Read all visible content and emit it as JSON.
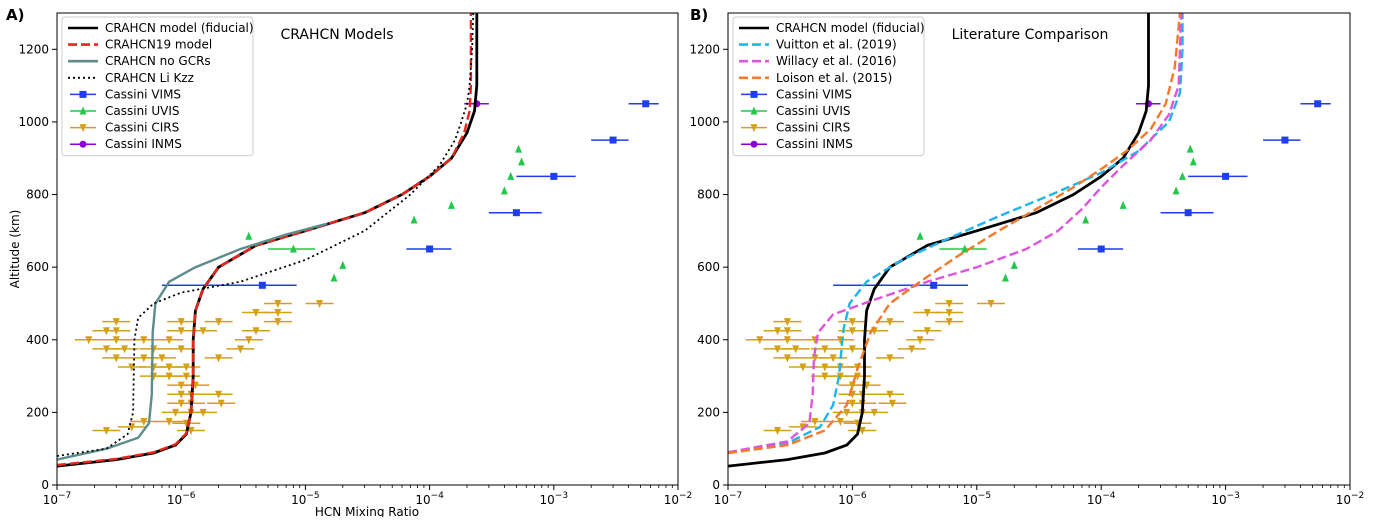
{
  "panels": [
    {
      "letter": "A)",
      "title": "CRAHCN Models",
      "xlabel": "HCN Mixing Ratio",
      "ylabel": "Altitude (km)",
      "legend": [
        {
          "label": "CRAHCN model (fiducial)",
          "color": "#000000",
          "style": "solid"
        },
        {
          "label": "CRAHCN19 model",
          "color": "#e8261c",
          "style": "dashed"
        },
        {
          "label": "CRAHCN no GCRs",
          "color": "#5e8c8c",
          "style": "solid"
        },
        {
          "label": "CRAHCN Li Kzz",
          "color": "#000000",
          "style": "dotted"
        },
        {
          "label": "Cassini VIMS",
          "color": "#1f3ef0",
          "marker": "square"
        },
        {
          "label": "Cassini UVIS",
          "color": "#22c84a",
          "marker": "triangle-up"
        },
        {
          "label": "Cassini CIRS",
          "color": "#d4a017",
          "marker": "triangle-down"
        },
        {
          "label": "Cassini INMS",
          "color": "#8a00d4",
          "marker": "circle"
        }
      ]
    },
    {
      "letter": "B)",
      "title": "Literature Comparison",
      "xlabel": "",
      "ylabel": "",
      "legend": [
        {
          "label": "CRAHCN model (fiducial)",
          "color": "#000000",
          "style": "solid"
        },
        {
          "label": "Vuitton et al. (2019)",
          "color": "#1fb4f0",
          "style": "dashed"
        },
        {
          "label": "Willacy et al. (2016)",
          "color": "#dd55dd",
          "style": "dashed"
        },
        {
          "label": "Loison et al. (2015)",
          "color": "#f5792a",
          "style": "dashed"
        },
        {
          "label": "Cassini VIMS",
          "color": "#1f3ef0",
          "marker": "square"
        },
        {
          "label": "Cassini UVIS",
          "color": "#22c84a",
          "marker": "triangle-up"
        },
        {
          "label": "Cassini CIRS",
          "color": "#d4a017",
          "marker": "triangle-down"
        },
        {
          "label": "Cassini INMS",
          "color": "#8a00d4",
          "marker": "circle"
        }
      ]
    }
  ],
  "chart_data": [
    {
      "type": "line",
      "title": "CRAHCN Models",
      "xlabel": "HCN Mixing Ratio",
      "ylabel": "Altitude (km)",
      "xscale": "log",
      "xlim": [
        1e-07,
        0.01
      ],
      "ylim": [
        0,
        1300
      ],
      "xticks": [
        "10^-7",
        "10^-6",
        "10^-5",
        "10^-4",
        "10^-3",
        "10^-2"
      ],
      "yticks": [
        0,
        200,
        400,
        600,
        800,
        1000,
        1200
      ],
      "legend_position": "top-left",
      "series": [
        {
          "name": "CRAHCN model (fiducial)",
          "color": "#000000",
          "style": "solid",
          "x": [
            1e-07,
            3e-07,
            6e-07,
            9e-07,
            1.1e-06,
            1.2e-06,
            1.25e-06,
            1.25e-06,
            1.3e-06,
            1.5e-06,
            2e-06,
            4e-06,
            1e-05,
            3e-05,
            6e-05,
            0.0001,
            0.00015,
            0.0002,
            0.00023,
            0.00024,
            0.00024
          ],
          "y": [
            52,
            70,
            88,
            110,
            140,
            200,
            300,
            400,
            480,
            540,
            600,
            660,
            700,
            750,
            800,
            850,
            900,
            970,
            1030,
            1100,
            1300
          ]
        },
        {
          "name": "CRAHCN19 model",
          "color": "#e8261c",
          "style": "dashed",
          "x": [
            1e-07,
            3e-07,
            6e-07,
            9e-07,
            1.1e-06,
            1.2e-06,
            1.25e-06,
            1.25e-06,
            1.3e-06,
            1.5e-06,
            2e-06,
            4e-06,
            1e-05,
            3e-05,
            6e-05,
            0.0001,
            0.00015,
            0.00019,
            0.00021,
            0.000215,
            0.000215
          ],
          "y": [
            55,
            72,
            90,
            112,
            142,
            200,
            300,
            400,
            480,
            540,
            600,
            660,
            700,
            750,
            800,
            850,
            900,
            970,
            1030,
            1100,
            1300
          ]
        },
        {
          "name": "CRAHCN no GCRs",
          "color": "#5e8c8c",
          "style": "solid",
          "x": [
            1e-07,
            2.5e-07,
            4.5e-07,
            5.5e-07,
            5.8e-07,
            5.9e-07,
            6.2e-07,
            8e-07,
            1.3e-06,
            3e-06,
            7e-06,
            1.5e-05
          ],
          "y": [
            70,
            100,
            130,
            170,
            250,
            420,
            500,
            560,
            600,
            650,
            690,
            720
          ]
        },
        {
          "name": "CRAHCN Li Kzz",
          "color": "#000000",
          "style": "dotted",
          "x": [
            1e-07,
            2.5e-07,
            3.7e-07,
            4.1e-07,
            4.2e-07,
            4.5e-07,
            6e-07,
            1e-06,
            3e-06,
            1e-05,
            3e-05,
            7e-05,
            0.00012,
            0.00016,
            0.00018,
            0.0002,
            0.00021,
            0.00022,
            0.000225
          ],
          "y": [
            80,
            100,
            140,
            200,
            400,
            460,
            500,
            530,
            560,
            620,
            700,
            800,
            880,
            950,
            1000,
            1050,
            1100,
            1200,
            1300
          ]
        }
      ],
      "observations": {
        "vims": [
          {
            "x": 4.5e-06,
            "xmin": 7e-07,
            "xmax": 8.5e-06,
            "y": 550
          },
          {
            "x": 0.0001,
            "xmin": 6.5e-05,
            "xmax": 0.00015,
            "y": 650
          },
          {
            "x": 0.0005,
            "xmin": 0.0003,
            "xmax": 0.0008,
            "y": 750
          },
          {
            "x": 0.001,
            "xmin": 0.0005,
            "xmax": 0.0015,
            "y": 850
          },
          {
            "x": 0.003,
            "xmin": 0.002,
            "xmax": 0.004,
            "y": 950
          },
          {
            "x": 0.0055,
            "xmin": 0.004,
            "xmax": 0.007,
            "y": 1050
          }
        ],
        "uvis": [
          {
            "x": 3.5e-06,
            "y": 685
          },
          {
            "x": 8e-06,
            "xmin": 5e-06,
            "xmax": 1.2e-05,
            "y": 650
          },
          {
            "x": 1.7e-05,
            "y": 570
          },
          {
            "x": 2e-05,
            "y": 605
          },
          {
            "x": 7.5e-05,
            "y": 730
          },
          {
            "x": 0.00015,
            "y": 770
          },
          {
            "x": 0.0004,
            "y": 810
          },
          {
            "x": 0.00045,
            "y": 850
          },
          {
            "x": 0.00055,
            "y": 890
          },
          {
            "x": 0.00052,
            "y": 925
          }
        ],
        "cirs": [
          {
            "x": 2.5e-07,
            "y": 150
          },
          {
            "x": 4e-07,
            "y": 160
          },
          {
            "x": 5e-07,
            "y": 175
          },
          {
            "x": 8e-07,
            "y": 175
          },
          {
            "x": 1.1e-06,
            "y": 170
          },
          {
            "x": 1.2e-06,
            "y": 150
          },
          {
            "x": 9e-07,
            "y": 200
          },
          {
            "x": 1.2e-06,
            "y": 200
          },
          {
            "x": 1.5e-06,
            "y": 200
          },
          {
            "x": 1e-06,
            "y": 225
          },
          {
            "x": 1.2e-06,
            "y": 225
          },
          {
            "x": 2.1e-06,
            "y": 225
          },
          {
            "x": 1e-06,
            "y": 250
          },
          {
            "x": 1.2e-06,
            "y": 250
          },
          {
            "x": 2e-06,
            "y": 250
          },
          {
            "x": 1e-06,
            "y": 275
          },
          {
            "x": 1.3e-06,
            "y": 275
          },
          {
            "x": 6e-07,
            "y": 300
          },
          {
            "x": 8e-07,
            "y": 300
          },
          {
            "x": 1.1e-06,
            "y": 300
          },
          {
            "x": 4e-07,
            "y": 325
          },
          {
            "x": 6e-07,
            "y": 325
          },
          {
            "x": 8e-07,
            "y": 325
          },
          {
            "x": 1.1e-06,
            "y": 325
          },
          {
            "x": 3e-07,
            "y": 350
          },
          {
            "x": 5e-07,
            "y": 350
          },
          {
            "x": 7e-07,
            "y": 350
          },
          {
            "x": 2e-06,
            "y": 350
          },
          {
            "x": 2.5e-07,
            "y": 375
          },
          {
            "x": 3.5e-07,
            "y": 375
          },
          {
            "x": 6e-07,
            "y": 375
          },
          {
            "x": 1e-06,
            "y": 375
          },
          {
            "x": 3e-06,
            "y": 375
          },
          {
            "x": 1.8e-07,
            "y": 400
          },
          {
            "x": 3e-07,
            "y": 400
          },
          {
            "x": 5e-07,
            "y": 400
          },
          {
            "x": 8e-07,
            "y": 400
          },
          {
            "x": 3.5e-06,
            "y": 400
          },
          {
            "x": 2.5e-07,
            "y": 425
          },
          {
            "x": 3e-07,
            "y": 425
          },
          {
            "x": 1e-06,
            "y": 425
          },
          {
            "x": 1.5e-06,
            "y": 425
          },
          {
            "x": 4e-06,
            "y": 425
          },
          {
            "x": 3e-07,
            "y": 450
          },
          {
            "x": 1e-06,
            "y": 450
          },
          {
            "x": 2e-06,
            "y": 450
          },
          {
            "x": 6e-06,
            "y": 450
          },
          {
            "x": 6e-06,
            "y": 475
          },
          {
            "x": 4e-06,
            "y": 475
          },
          {
            "x": 6e-06,
            "y": 500
          },
          {
            "x": 1.3e-05,
            "y": 500
          }
        ],
        "inms": [
          {
            "x": 0.00024,
            "xmin": 0.00019,
            "xmax": 0.0003,
            "y": 1050
          }
        ]
      }
    },
    {
      "type": "line",
      "title": "Literature Comparison",
      "xscale": "log",
      "xlim": [
        1e-07,
        0.01
      ],
      "ylim": [
        0,
        1300
      ],
      "xticks": [
        "10^-7",
        "10^-6",
        "10^-5",
        "10^-4",
        "10^-3",
        "10^-2"
      ],
      "yticks": [
        0,
        200,
        400,
        600,
        800,
        1000,
        1200
      ],
      "legend_position": "top-left",
      "series": [
        {
          "name": "CRAHCN model (fiducial)",
          "color": "#000000",
          "style": "solid",
          "x": [
            1e-07,
            3e-07,
            6e-07,
            9e-07,
            1.1e-06,
            1.2e-06,
            1.25e-06,
            1.25e-06,
            1.3e-06,
            1.5e-06,
            2e-06,
            4e-06,
            1e-05,
            3e-05,
            6e-05,
            0.0001,
            0.00015,
            0.0002,
            0.00023,
            0.00024,
            0.00024
          ],
          "y": [
            52,
            70,
            88,
            110,
            140,
            200,
            300,
            400,
            480,
            540,
            600,
            660,
            700,
            750,
            800,
            850,
            900,
            970,
            1030,
            1100,
            1300
          ]
        },
        {
          "name": "Vuitton et al. (2019)",
          "color": "#1fb4f0",
          "style": "dashed",
          "x": [
            1e-07,
            3e-07,
            5.5e-07,
            7e-07,
            7.8e-07,
            8.2e-07,
            8.5e-07,
            9.5e-07,
            1.3e-06,
            2.5e-06,
            6e-06,
            1.5e-05,
            4e-05,
            0.0001,
            0.0002,
            0.00035,
            0.00043,
            0.00045,
            0.00045
          ],
          "y": [
            90,
            115,
            160,
            220,
            300,
            380,
            430,
            500,
            560,
            620,
            680,
            740,
            800,
            860,
            920,
            1000,
            1080,
            1200,
            1300
          ]
        },
        {
          "name": "Willacy et al. (2016)",
          "color": "#dd55dd",
          "style": "dashed",
          "x": [
            1e-07,
            3e-07,
            4.5e-07,
            4.8e-07,
            4.9e-07,
            5.3e-07,
            7e-07,
            1.5e-06,
            4e-06,
            1e-05,
            2.5e-05,
            4.5e-05,
            7e-05,
            0.0001,
            0.00015,
            0.00025,
            0.00035,
            0.00042,
            0.00044
          ],
          "y": [
            90,
            120,
            170,
            250,
            350,
            420,
            470,
            510,
            560,
            600,
            650,
            700,
            760,
            820,
            880,
            950,
            1020,
            1100,
            1300
          ]
        },
        {
          "name": "Loison et al. (2015)",
          "color": "#f5792a",
          "style": "dashed",
          "x": [
            1e-07,
            3e-07,
            6e-07,
            9e-07,
            1.1e-06,
            1.4e-06,
            2e-06,
            3.5e-06,
            7e-06,
            1.5e-05,
            3e-05,
            6e-05,
            0.0001,
            0.00016,
            0.00025,
            0.00033,
            0.00039,
            0.00043
          ],
          "y": [
            88,
            110,
            150,
            220,
            320,
            420,
            500,
            560,
            630,
            700,
            760,
            820,
            870,
            920,
            980,
            1050,
            1150,
            1300
          ]
        }
      ],
      "observations": "same as panel A"
    }
  ]
}
